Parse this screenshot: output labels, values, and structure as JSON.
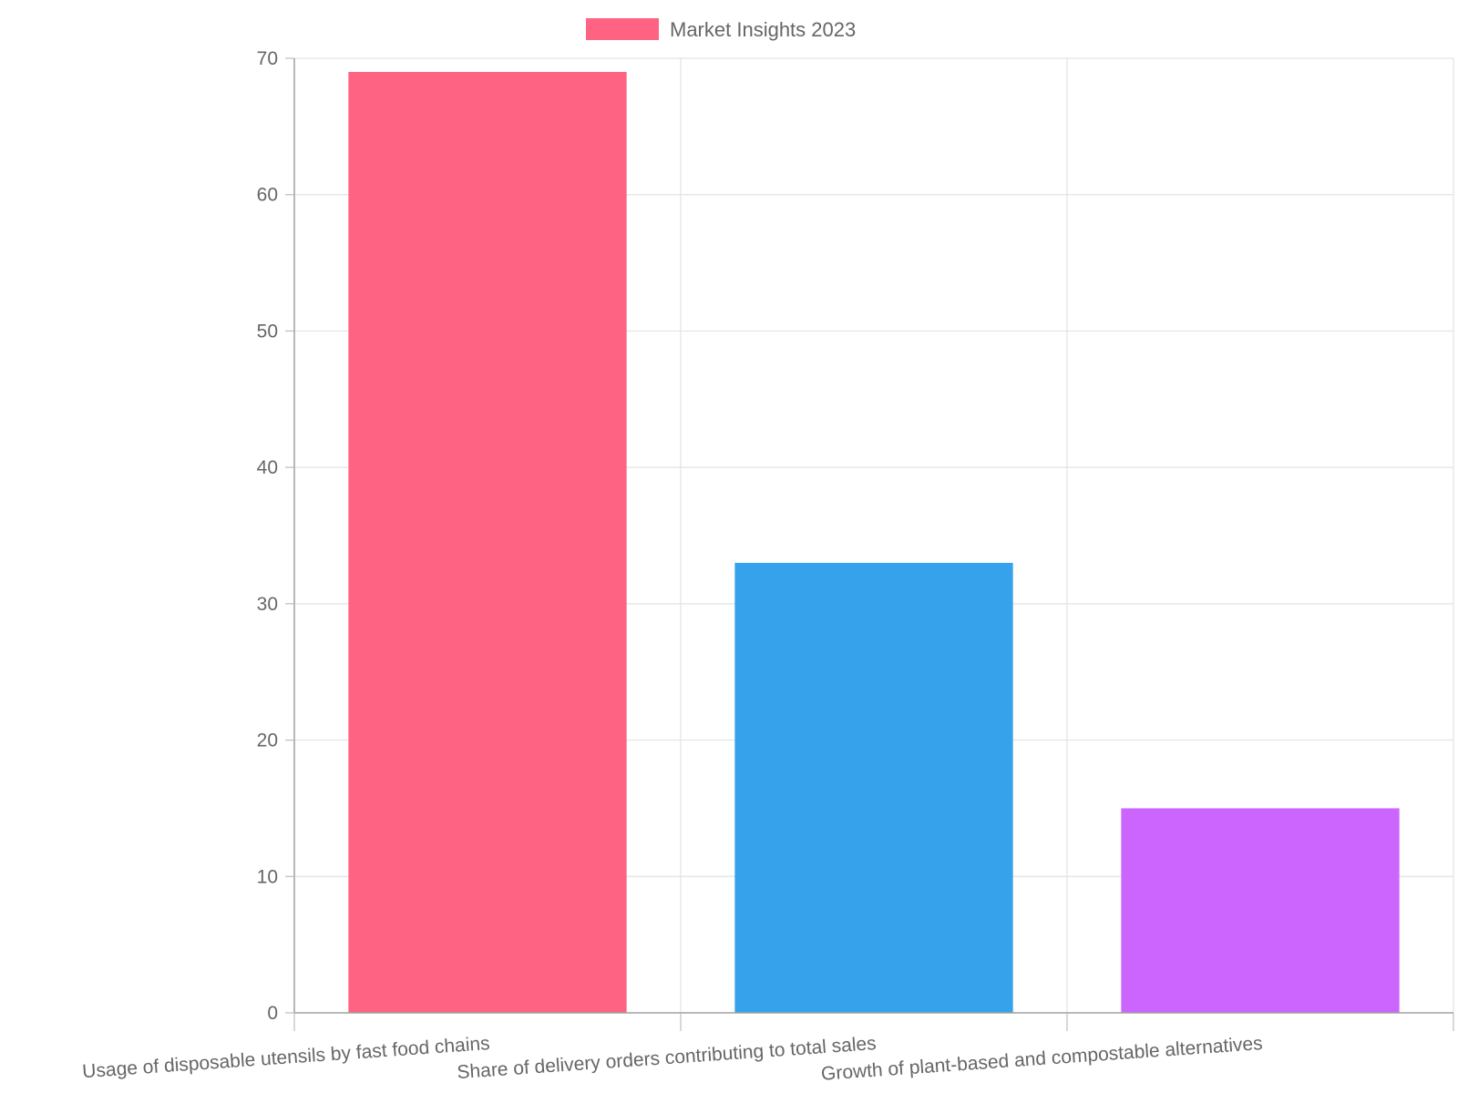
{
  "chart_data": {
    "type": "bar",
    "categories": [
      "Usage of disposable utensils by fast food chains",
      "Share of delivery orders contributing to total sales",
      "Growth of plant-based and compostable alternatives"
    ],
    "series": [
      {
        "name": "Market Insights 2023",
        "values": [
          69,
          33,
          15
        ],
        "colors": [
          "#ff6384",
          "#36a2eb",
          "#cc65fe"
        ]
      }
    ],
    "ylim": [
      0,
      70
    ],
    "yticks": [
      0,
      10,
      20,
      30,
      40,
      50,
      60,
      70
    ],
    "grid": true,
    "legend_position": "top-center",
    "legend_color": "#ff6384"
  }
}
